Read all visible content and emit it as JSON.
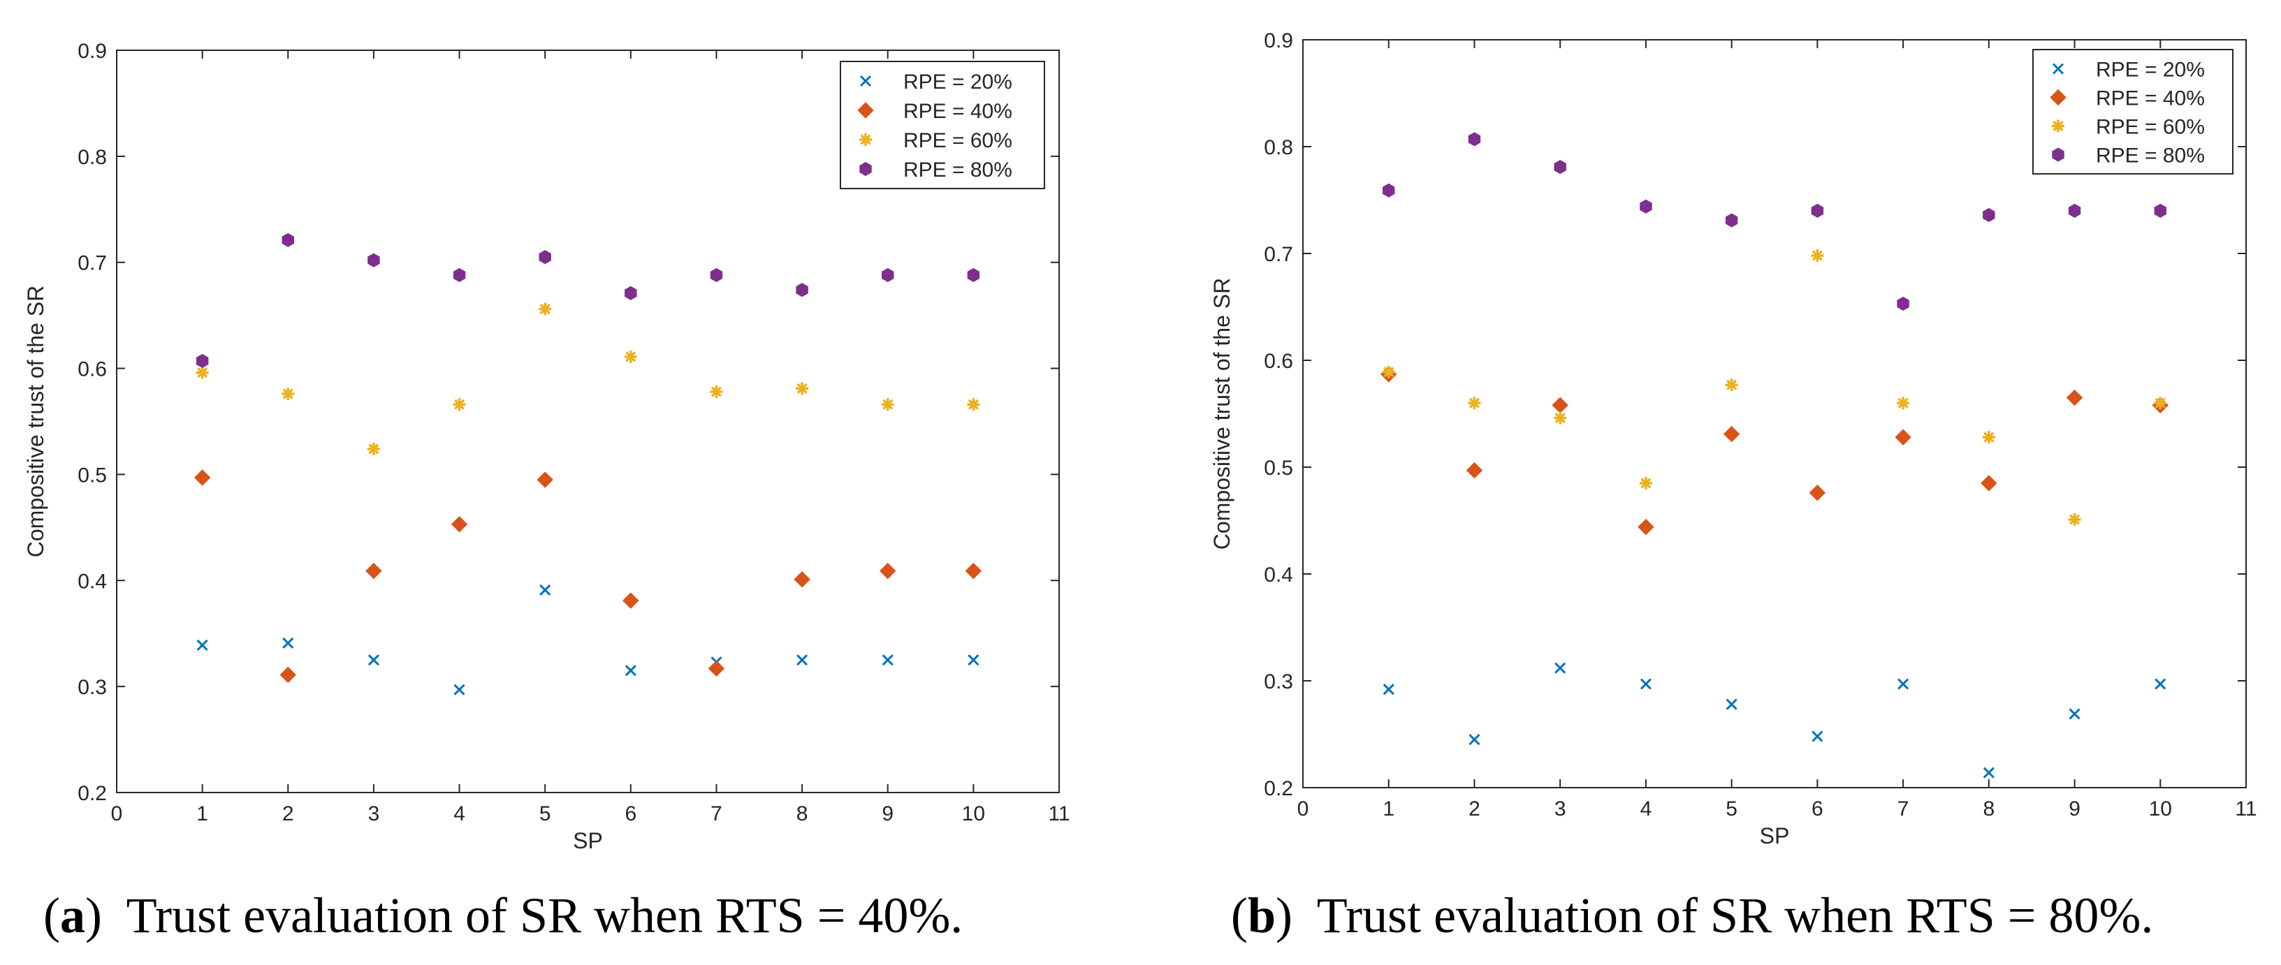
{
  "colors": {
    "series": [
      "#0072BD",
      "#D95319",
      "#EDB120",
      "#7E2F8E"
    ],
    "axis": "#262626"
  },
  "panels": [
    {
      "caption_letter": "a",
      "caption_text": "Trust evaluation of SR when RTS = 40%.",
      "chart_data": {
        "type": "scatter",
        "xlabel": "SP",
        "ylabel": "Compositive trust of the SR",
        "xlim": [
          0,
          11
        ],
        "ylim": [
          0.2,
          0.9
        ],
        "xticks": [
          "0",
          "1",
          "2",
          "3",
          "4",
          "5",
          "6",
          "7",
          "8",
          "9",
          "10",
          "11"
        ],
        "yticks": [
          "0.2",
          "0.3",
          "0.4",
          "0.5",
          "0.6",
          "0.7",
          "0.8",
          "0.9"
        ],
        "grid": false,
        "legend_position": "top-right",
        "x": [
          1,
          2,
          3,
          4,
          5,
          6,
          7,
          8,
          9,
          10
        ],
        "series": [
          {
            "name": "RPE = 20%",
            "marker": "x",
            "values": [
              0.339,
              0.341,
              0.325,
              0.297,
              0.391,
              0.315,
              0.323,
              0.325,
              0.325,
              0.325
            ]
          },
          {
            "name": "RPE = 40%",
            "marker": "diamond",
            "values": [
              0.497,
              0.311,
              0.409,
              0.453,
              0.495,
              0.381,
              0.317,
              0.401,
              0.409,
              0.409
            ]
          },
          {
            "name": "RPE = 60%",
            "marker": "star",
            "values": [
              0.596,
              0.576,
              0.524,
              0.566,
              0.656,
              0.611,
              0.578,
              0.581,
              0.566,
              0.566
            ]
          },
          {
            "name": "RPE = 80%",
            "marker": "hexagon",
            "values": [
              0.607,
              0.721,
              0.702,
              0.688,
              0.705,
              0.671,
              0.688,
              0.674,
              0.688,
              0.688
            ]
          }
        ]
      }
    },
    {
      "caption_letter": "b",
      "caption_text": "Trust evaluation of SR when RTS = 80%.",
      "chart_data": {
        "type": "scatter",
        "xlabel": "SP",
        "ylabel": "Compositive trust of the SR",
        "xlim": [
          0,
          11
        ],
        "ylim": [
          0.2,
          0.9
        ],
        "xticks": [
          "0",
          "1",
          "2",
          "3",
          "4",
          "5",
          "6",
          "7",
          "8",
          "9",
          "10",
          "11"
        ],
        "yticks": [
          "0.2",
          "0.3",
          "0.4",
          "0.5",
          "0.6",
          "0.7",
          "0.8",
          "0.9"
        ],
        "grid": false,
        "legend_position": "top-right",
        "x": [
          1,
          2,
          3,
          4,
          5,
          6,
          7,
          8,
          9,
          10
        ],
        "series": [
          {
            "name": "RPE = 20%",
            "marker": "x",
            "values": [
              0.292,
              0.245,
              0.312,
              0.297,
              0.278,
              0.248,
              0.297,
              0.214,
              0.269,
              0.297
            ]
          },
          {
            "name": "RPE = 40%",
            "marker": "diamond",
            "values": [
              0.587,
              0.497,
              0.558,
              0.444,
              0.531,
              0.476,
              0.528,
              0.485,
              0.565,
              0.558
            ]
          },
          {
            "name": "RPE = 60%",
            "marker": "star",
            "values": [
              0.589,
              0.56,
              0.546,
              0.485,
              0.577,
              0.698,
              0.56,
              0.528,
              0.451,
              0.56
            ]
          },
          {
            "name": "RPE = 80%",
            "marker": "hexagon",
            "values": [
              0.759,
              0.807,
              0.781,
              0.744,
              0.731,
              0.74,
              0.653,
              0.736,
              0.74,
              0.74
            ]
          }
        ]
      }
    }
  ]
}
